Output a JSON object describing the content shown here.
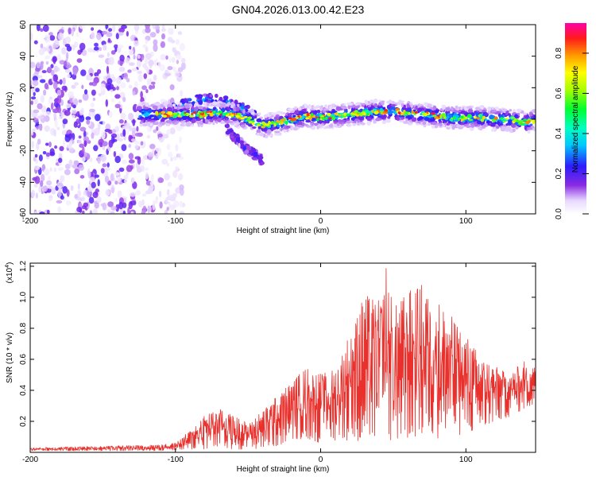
{
  "title": "GN04.2026.013.00.42.E23",
  "chart_data": [
    {
      "type": "heatmap",
      "title": "GN04.2026.013.00.42.E23",
      "xlabel": "Height of straight line (km)",
      "ylabel": "Frequency (Hz)",
      "xlim": [
        -200,
        148
      ],
      "ylim": [
        -60,
        60
      ],
      "xticks": [
        -200,
        -100,
        0,
        100
      ],
      "yticks": [
        -60,
        -40,
        -20,
        0,
        20,
        40,
        60
      ],
      "colorbar": {
        "label": "Normalized spectral amplitude",
        "range": [
          0,
          0.95
        ],
        "ticks": [
          0,
          0.2,
          0.4,
          0.6,
          0.8
        ],
        "tick_labels": [
          "0.0",
          "0.2",
          "0.4",
          "0.6",
          "0.8"
        ]
      },
      "features": {
        "noise_region_x": [
          -200,
          -100
        ],
        "main_ridge": {
          "x": [
            -125,
            -110,
            -100,
            -90,
            -80,
            -70,
            -60,
            -50,
            -40,
            -30,
            -20,
            -10,
            0,
            10,
            20,
            30,
            40,
            50,
            60,
            70,
            80,
            90,
            100,
            110,
            120,
            130,
            140,
            148
          ],
          "y": [
            3,
            3,
            3,
            3,
            3,
            4,
            3,
            0,
            -4,
            -3,
            0,
            2,
            1,
            2,
            3,
            4,
            5,
            5,
            4,
            3,
            2,
            1,
            1,
            1,
            0,
            0,
            -2,
            -1
          ],
          "peak_amplitude": 0.9
        },
        "upper_arc": {
          "x": [
            -105,
            -95,
            -85,
            -75,
            -65,
            -55,
            -45
          ],
          "y": [
            5,
            9,
            12,
            13,
            11,
            7,
            3
          ]
        },
        "lower_branch": {
          "x": [
            -65,
            -58,
            -52,
            -46,
            -40
          ],
          "y": [
            -6,
            -12,
            -18,
            -22,
            -26
          ]
        }
      }
    },
    {
      "type": "line",
      "xlabel": "Height of straight line (km)",
      "ylabel": "SNR (10 * v/v)",
      "y_multiplier_label": "(x10",
      "y_multiplier_exp": "4",
      "y_multiplier_close": ")",
      "xlim": [
        -200,
        148
      ],
      "ylim": [
        0,
        12200
      ],
      "xticks": [
        -200,
        -100,
        0,
        100
      ],
      "yticks": [
        2000,
        4000,
        6000,
        8000,
        10000,
        12000
      ],
      "ytick_labels": [
        "0.2",
        "0.4",
        "0.6",
        "0.8",
        "1.0",
        "1.2"
      ],
      "series": [
        {
          "name": "SNR",
          "color": "#e8302c",
          "envelope_x": [
            -200,
            -150,
            -110,
            -100,
            -90,
            -80,
            -70,
            -60,
            -50,
            -40,
            -30,
            -20,
            -10,
            0,
            10,
            20,
            30,
            40,
            45,
            50,
            60,
            70,
            80,
            90,
            100,
            110,
            120,
            130,
            140,
            148
          ],
          "envelope_max": [
            300,
            400,
            500,
            600,
            1400,
            2500,
            2900,
            2400,
            1900,
            2700,
            3700,
            4600,
            5500,
            5100,
            5400,
            7800,
            10200,
            9800,
            12200,
            9300,
            10400,
            10900,
            9900,
            8800,
            7600,
            6200,
            5600,
            5100,
            5900,
            5500
          ],
          "envelope_min": [
            100,
            100,
            100,
            150,
            200,
            200,
            250,
            200,
            200,
            250,
            400,
            800,
            900,
            600,
            700,
            800,
            700,
            800,
            900,
            700,
            900,
            1000,
            900,
            1000,
            1200,
            1400,
            2000,
            2300,
            2800,
            3000
          ]
        }
      ]
    }
  ]
}
